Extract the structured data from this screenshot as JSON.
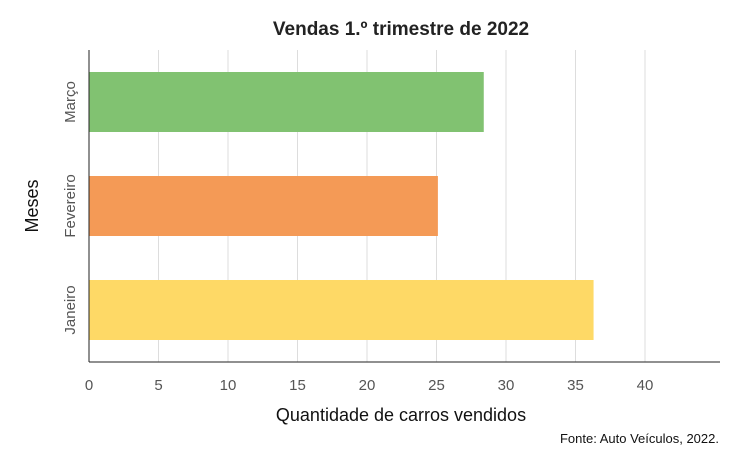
{
  "chart_data": {
    "type": "bar",
    "orientation": "horizontal",
    "title": "Vendas 1.º trimestre de 2022",
    "xlabel": "Quantidade de carros vendidos",
    "ylabel": "Meses",
    "categories": [
      "Janeiro",
      "Fevereiro",
      "Março"
    ],
    "values": [
      36.3,
      25.1,
      28.4
    ],
    "colors": [
      "#fed966",
      "#f49a56",
      "#81c271"
    ],
    "xlim": [
      0,
      45
    ],
    "xticks": [
      0,
      5,
      10,
      15,
      20,
      25,
      30,
      35,
      40
    ],
    "grid": true,
    "legend": "none"
  },
  "source": "Fonte: Auto Veículos, 2022."
}
